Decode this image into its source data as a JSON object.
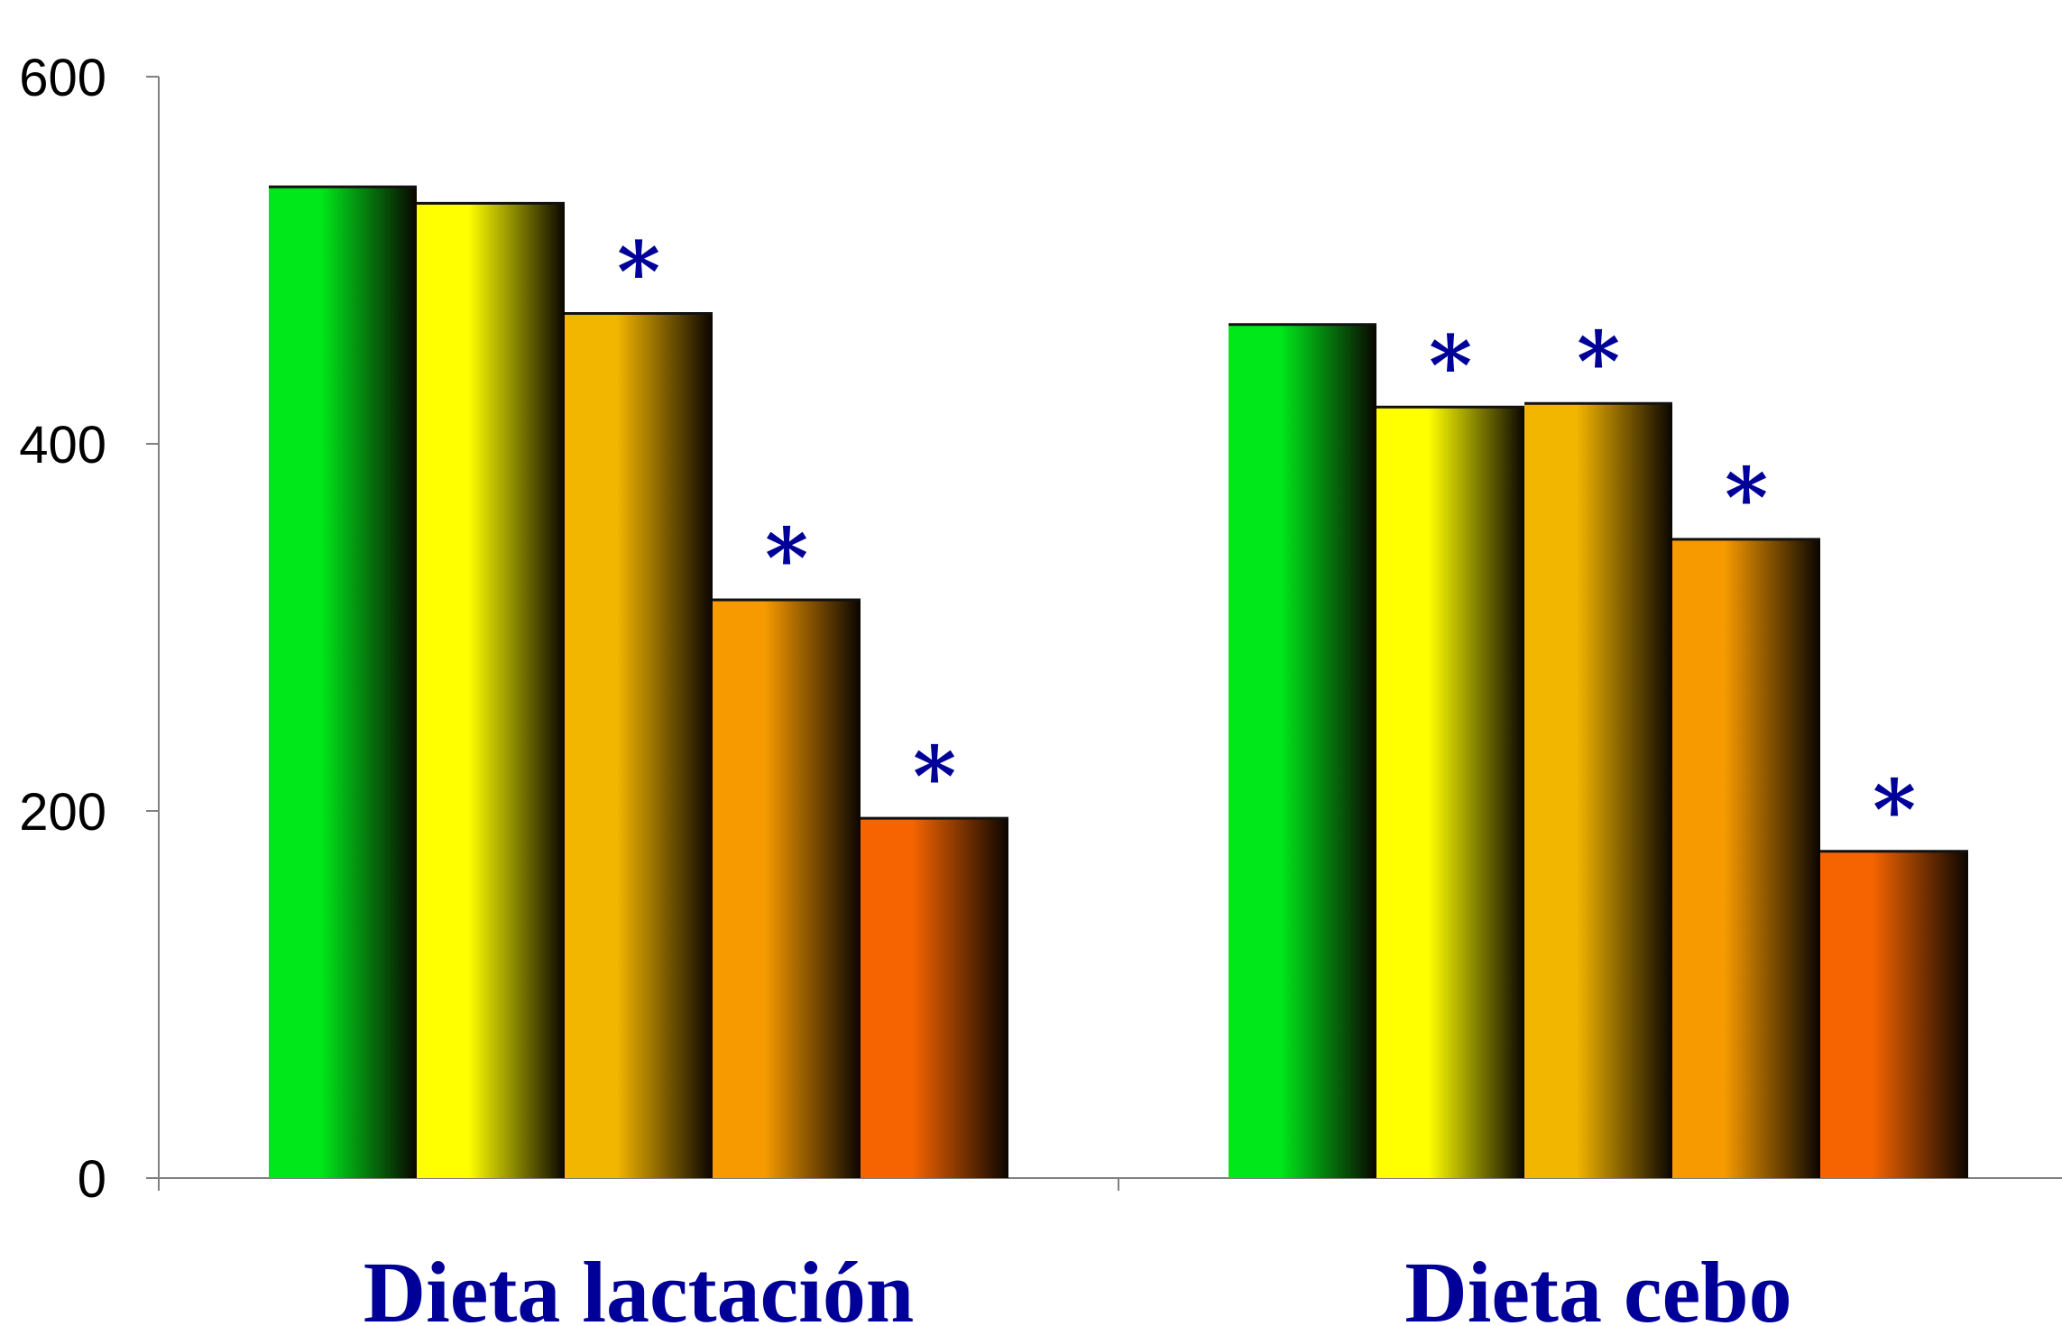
{
  "chart_data": {
    "type": "bar",
    "categories": [
      "Dieta lactación",
      "Dieta cebo"
    ],
    "series": [
      {
        "color": "#00e81a",
        "values": [
          540,
          465
        ]
      },
      {
        "color": "#ffff00",
        "values": [
          531,
          420
        ]
      },
      {
        "color": "#f3b600",
        "values": [
          471,
          422
        ]
      },
      {
        "color": "#f79a00",
        "values": [
          315,
          348
        ]
      },
      {
        "color": "#f56400",
        "values": [
          196,
          178
        ]
      }
    ],
    "annotations": [
      [
        null,
        null
      ],
      [
        null,
        "*"
      ],
      [
        "*",
        "*"
      ],
      [
        "*",
        "*"
      ],
      [
        "*",
        "*"
      ]
    ],
    "yticks": [
      "0",
      "200",
      "400",
      "600"
    ],
    "ylim": [
      0,
      600
    ],
    "grid": false,
    "legend": "none",
    "label_color": "#000099",
    "axis_color": "#808080"
  }
}
